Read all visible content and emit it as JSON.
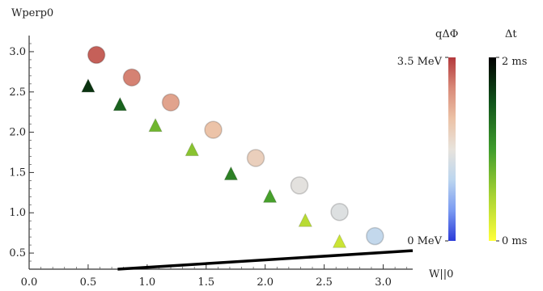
{
  "chart_data": {
    "type": "scatter",
    "xlabel": "W||0",
    "ylabel": "Wperp0",
    "xlim": [
      0.0,
      3.25
    ],
    "ylim": [
      0.3,
      3.2
    ],
    "x_ticks": [
      {
        "value": 0.0,
        "label": "0.0"
      },
      {
        "value": 0.5,
        "label": "0.5"
      },
      {
        "value": 1.0,
        "label": "1.0"
      },
      {
        "value": 1.5,
        "label": "1.5"
      },
      {
        "value": 2.0,
        "label": "2.0"
      },
      {
        "value": 2.5,
        "label": "2.5"
      },
      {
        "value": 3.0,
        "label": "3.0"
      }
    ],
    "y_ticks": [
      {
        "value": 0.5,
        "label": "0.5"
      },
      {
        "value": 1.0,
        "label": "1.0"
      },
      {
        "value": 1.5,
        "label": "1.5"
      },
      {
        "value": 2.0,
        "label": "2.0"
      },
      {
        "value": 2.5,
        "label": "2.5"
      },
      {
        "value": 3.0,
        "label": "3.0"
      }
    ],
    "grid": false,
    "series": [
      {
        "marker": "circle",
        "color_scale": "q_delta_phi",
        "points": [
          {
            "x": 0.57,
            "y": 2.96,
            "c": 0.92
          },
          {
            "x": 0.87,
            "y": 2.68,
            "c": 0.85
          },
          {
            "x": 1.2,
            "y": 2.37,
            "c": 0.76
          },
          {
            "x": 1.56,
            "y": 2.03,
            "c": 0.66
          },
          {
            "x": 1.92,
            "y": 1.68,
            "c": 0.6
          },
          {
            "x": 2.29,
            "y": 1.34,
            "c": 0.48
          },
          {
            "x": 2.63,
            "y": 1.01,
            "c": 0.46
          },
          {
            "x": 2.93,
            "y": 0.71,
            "c": 0.36
          }
        ]
      },
      {
        "marker": "triangle",
        "color_scale": "delta_t",
        "points": [
          {
            "x": 0.5,
            "y": 2.56,
            "c": 0.85
          },
          {
            "x": 0.77,
            "y": 2.33,
            "c": 0.7
          },
          {
            "x": 1.07,
            "y": 2.07,
            "c": 0.38
          },
          {
            "x": 1.38,
            "y": 1.77,
            "c": 0.32
          },
          {
            "x": 1.71,
            "y": 1.47,
            "c": 0.6
          },
          {
            "x": 2.04,
            "y": 1.19,
            "c": 0.48
          },
          {
            "x": 2.34,
            "y": 0.89,
            "c": 0.2
          },
          {
            "x": 2.63,
            "y": 0.63,
            "c": 0.15
          }
        ]
      }
    ],
    "line": {
      "x": [
        0.75,
        3.25
      ],
      "y": [
        0.3,
        0.53
      ],
      "color": "#000000"
    },
    "legends": [
      {
        "id": "q_delta_phi",
        "title": "qΔΦ",
        "max_label": "3.5 MeV",
        "min_label": "0 MeV",
        "stops": [
          "#2b3bd9",
          "#7b9bf2",
          "#bcd6ef",
          "#e8e3dc",
          "#ecc2a6",
          "#d98a79",
          "#b3393c"
        ]
      },
      {
        "id": "delta_t",
        "title": "Δt",
        "max_label": "2 ms",
        "min_label": "0 ms",
        "stops": [
          "#ffff3a",
          "#a6d232",
          "#3f9c2c",
          "#11551b",
          "#000000"
        ]
      }
    ]
  }
}
